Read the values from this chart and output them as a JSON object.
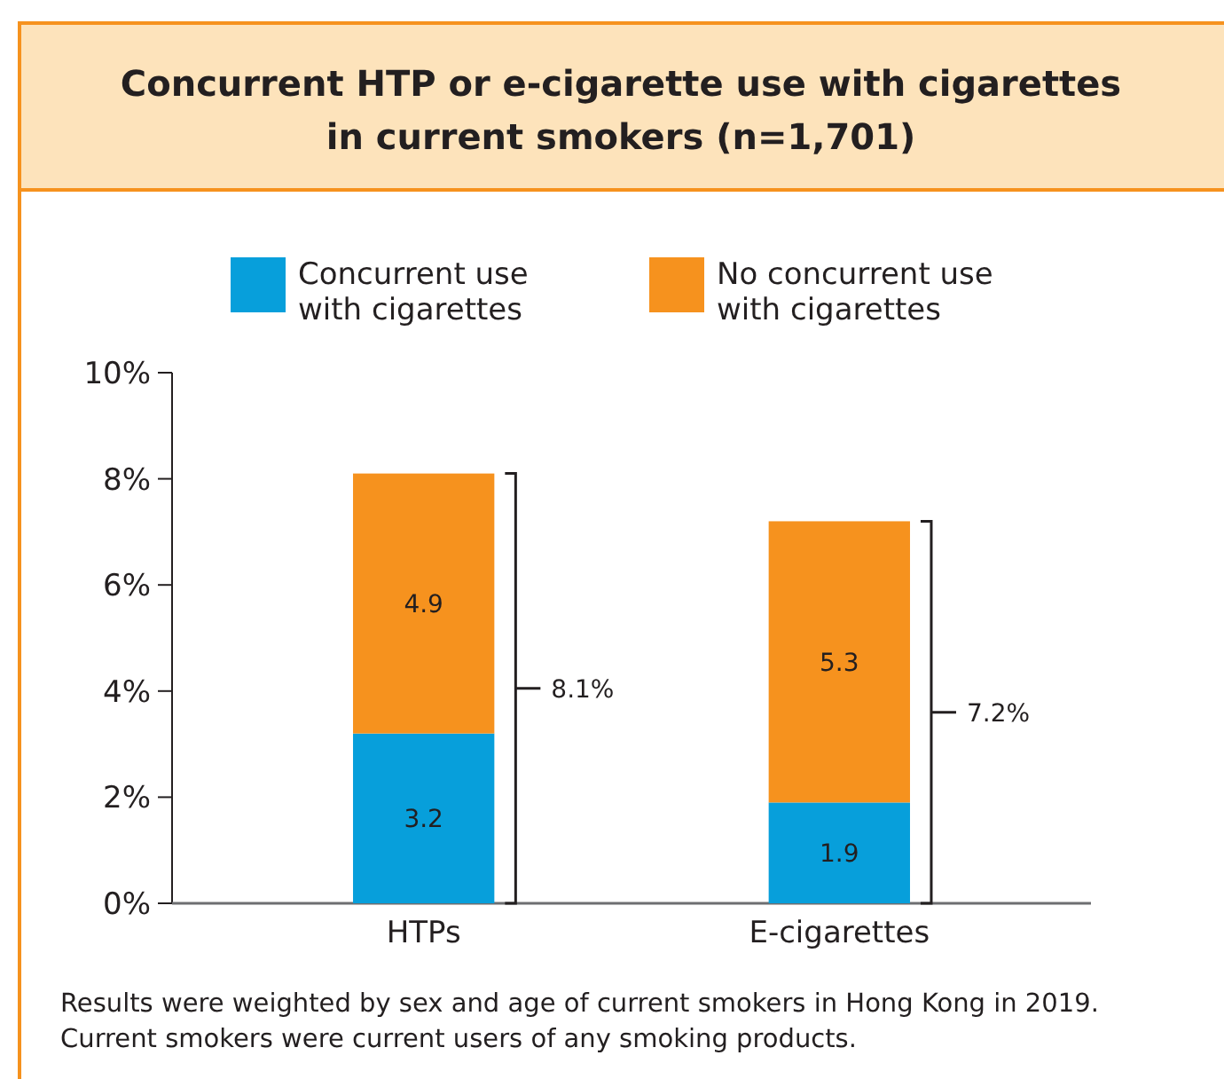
{
  "chart_data": {
    "type": "bar",
    "title": "Concurrent HTP or e-cigarette use with cigarettes in current smokers (n=1,701)",
    "categories": [
      "HTPs",
      "E-cigarettes"
    ],
    "stacked": true,
    "series": [
      {
        "name": "Concurrent use with cigarettes",
        "color": "#079fdb",
        "values": [
          3.2,
          1.9
        ]
      },
      {
        "name": "No concurrent use with cigarettes",
        "color": "#f6921e",
        "values": [
          4.9,
          5.3
        ]
      }
    ],
    "data_labels": true,
    "totals": [
      "8.1%",
      "7.2%"
    ],
    "ylim": [
      0,
      10
    ],
    "yticks": [
      {
        "value": 0,
        "label": "0%"
      },
      {
        "value": 2,
        "label": "2%"
      },
      {
        "value": 4,
        "label": "4%"
      },
      {
        "value": 6,
        "label": "6%"
      },
      {
        "value": 8,
        "label": "8%"
      },
      {
        "value": 10,
        "label": "10%"
      }
    ],
    "grid": false,
    "legend": "top",
    "annotations": [
      "Results were weighted by sex and age of current smokers in Hong Kong in 2019.",
      "Current smokers were current users of any smoking products."
    ]
  }
}
